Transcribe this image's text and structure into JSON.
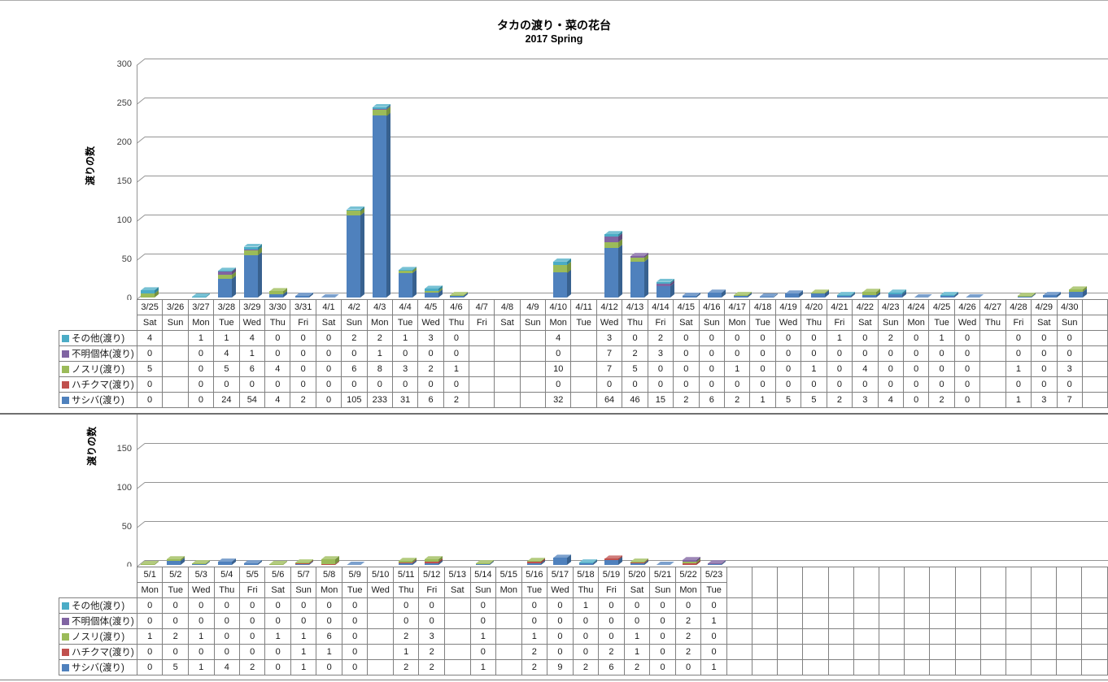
{
  "title": "タカの渡り・菜の花台",
  "subtitle": "2017 Spring",
  "ylabel": "渡りの数",
  "legend_note": "table rows top-to-bottom; stacking order in bars is reverse (サシバ at bottom)",
  "chart_data": [
    {
      "type": "bar",
      "stacked": true,
      "title": "タカの渡り・菜の花台 2017 Spring (3/25-4/30)",
      "ylabel": "渡りの数",
      "ylim": [
        0,
        300
      ],
      "yticks": [
        0,
        50,
        100,
        150,
        200,
        250,
        300
      ],
      "grid": true,
      "legend_position": "data-table-left",
      "categories": [
        "3/25",
        "3/26",
        "3/27",
        "3/28",
        "3/29",
        "3/30",
        "3/31",
        "4/1",
        "4/2",
        "4/3",
        "4/4",
        "4/5",
        "4/6",
        "4/7",
        "4/8",
        "4/9",
        "4/10",
        "4/11",
        "4/12",
        "4/13",
        "4/14",
        "4/15",
        "4/16",
        "4/17",
        "4/18",
        "4/19",
        "4/20",
        "4/21",
        "4/22",
        "4/23",
        "4/24",
        "4/25",
        "4/26",
        "4/27",
        "4/28",
        "4/29",
        "4/30"
      ],
      "days": [
        "Sat",
        "Sun",
        "Mon",
        "Tue",
        "Wed",
        "Thu",
        "Fri",
        "Sat",
        "Sun",
        "Mon",
        "Tue",
        "Wed",
        "Thu",
        "Fri",
        "Sat",
        "Sun",
        "Mon",
        "Tue",
        "Wed",
        "Thu",
        "Fri",
        "Sat",
        "Sun",
        "Mon",
        "Tue",
        "Wed",
        "Thu",
        "Fri",
        "Sat",
        "Sun",
        "Mon",
        "Tue",
        "Wed",
        "Thu",
        "Fri",
        "Sat",
        "Sun"
      ],
      "series": [
        {
          "name": "その他(渡り)",
          "color": "#4BACC6",
          "side": "#31859B",
          "cap": "#77C1D4",
          "values": [
            4,
            null,
            1,
            1,
            4,
            0,
            0,
            0,
            2,
            2,
            1,
            3,
            0,
            null,
            null,
            null,
            4,
            null,
            3,
            0,
            2,
            0,
            0,
            0,
            0,
            0,
            0,
            1,
            0,
            2,
            0,
            1,
            0,
            null,
            0,
            0,
            0
          ]
        },
        {
          "name": "不明個体(渡り)",
          "color": "#8064A2",
          "side": "#604A7B",
          "cap": "#9D87B7",
          "values": [
            0,
            null,
            0,
            4,
            1,
            0,
            0,
            0,
            0,
            1,
            0,
            0,
            0,
            null,
            null,
            null,
            0,
            null,
            7,
            2,
            3,
            0,
            0,
            0,
            0,
            0,
            0,
            0,
            0,
            0,
            0,
            0,
            0,
            null,
            0,
            0,
            0
          ]
        },
        {
          "name": "ノスリ(渡り)",
          "color": "#9BBB59",
          "side": "#77933F",
          "cap": "#B3CB7E",
          "values": [
            5,
            null,
            0,
            5,
            6,
            4,
            0,
            0,
            6,
            8,
            3,
            2,
            1,
            null,
            null,
            null,
            10,
            null,
            7,
            5,
            0,
            0,
            0,
            1,
            0,
            0,
            1,
            0,
            4,
            0,
            0,
            0,
            0,
            null,
            1,
            0,
            3
          ]
        },
        {
          "name": "ハチクマ(渡り)",
          "color": "#C0504D",
          "side": "#943634",
          "cap": "#CF7B79",
          "values": [
            0,
            null,
            0,
            0,
            0,
            0,
            0,
            0,
            0,
            0,
            0,
            0,
            0,
            null,
            null,
            null,
            0,
            null,
            0,
            0,
            0,
            0,
            0,
            0,
            0,
            0,
            0,
            0,
            0,
            0,
            0,
            0,
            0,
            null,
            0,
            0,
            0
          ]
        },
        {
          "name": "サシバ(渡り)",
          "color": "#4F81BD",
          "side": "#38618F",
          "cap": "#7BA0CD",
          "values": [
            0,
            null,
            0,
            24,
            54,
            4,
            2,
            0,
            105,
            233,
            31,
            6,
            2,
            null,
            null,
            null,
            32,
            null,
            64,
            46,
            15,
            2,
            6,
            2,
            1,
            5,
            5,
            2,
            3,
            4,
            0,
            2,
            0,
            null,
            1,
            3,
            7
          ]
        }
      ]
    },
    {
      "type": "bar",
      "stacked": true,
      "title": "タカの渡り・菜の花台 2017 Spring (5/1-5/23, top of plot clipped)",
      "ylabel": "渡りの数",
      "ylim": [
        0,
        150
      ],
      "yticks": [
        0,
        50,
        100,
        150
      ],
      "grid": true,
      "legend_position": "data-table-left",
      "categories": [
        "5/1",
        "5/2",
        "5/3",
        "5/4",
        "5/5",
        "5/6",
        "5/7",
        "5/8",
        "5/9",
        "5/10",
        "5/11",
        "5/12",
        "5/13",
        "5/14",
        "5/15",
        "5/16",
        "5/17",
        "5/18",
        "5/19",
        "5/20",
        "5/21",
        "5/22",
        "5/23"
      ],
      "days": [
        "Mon",
        "Tue",
        "Wed",
        "Thu",
        "Fri",
        "Sat",
        "Sun",
        "Mon",
        "Tue",
        "Wed",
        "Thu",
        "Fri",
        "Sat",
        "Sun",
        "Mon",
        "Tue",
        "Wed",
        "Thu",
        "Fri",
        "Sat",
        "Sun",
        "Mon",
        "Tue"
      ],
      "series": [
        {
          "name": "その他(渡り)",
          "color": "#4BACC6",
          "side": "#31859B",
          "cap": "#77C1D4",
          "values": [
            0,
            0,
            0,
            0,
            0,
            0,
            0,
            0,
            0,
            null,
            0,
            0,
            null,
            0,
            null,
            0,
            0,
            1,
            0,
            0,
            0,
            0,
            0
          ]
        },
        {
          "name": "不明個体(渡り)",
          "color": "#8064A2",
          "side": "#604A7B",
          "cap": "#9D87B7",
          "values": [
            0,
            0,
            0,
            0,
            0,
            0,
            0,
            0,
            0,
            null,
            0,
            0,
            null,
            0,
            null,
            0,
            0,
            0,
            0,
            0,
            0,
            2,
            1
          ]
        },
        {
          "name": "ノスリ(渡り)",
          "color": "#9BBB59",
          "side": "#77933F",
          "cap": "#B3CB7E",
          "values": [
            1,
            2,
            1,
            0,
            0,
            1,
            1,
            6,
            0,
            null,
            2,
            3,
            null,
            1,
            null,
            1,
            0,
            0,
            0,
            1,
            0,
            2,
            0
          ]
        },
        {
          "name": "ハチクマ(渡り)",
          "color": "#C0504D",
          "side": "#943634",
          "cap": "#CF7B79",
          "values": [
            0,
            0,
            0,
            0,
            0,
            0,
            1,
            1,
            0,
            null,
            1,
            2,
            null,
            0,
            null,
            2,
            0,
            0,
            2,
            1,
            0,
            2,
            0
          ]
        },
        {
          "name": "サシバ(渡り)",
          "color": "#4F81BD",
          "side": "#38618F",
          "cap": "#7BA0CD",
          "values": [
            0,
            5,
            1,
            4,
            2,
            0,
            1,
            0,
            0,
            null,
            2,
            2,
            null,
            1,
            null,
            2,
            9,
            2,
            6,
            2,
            0,
            0,
            1
          ]
        }
      ]
    }
  ]
}
